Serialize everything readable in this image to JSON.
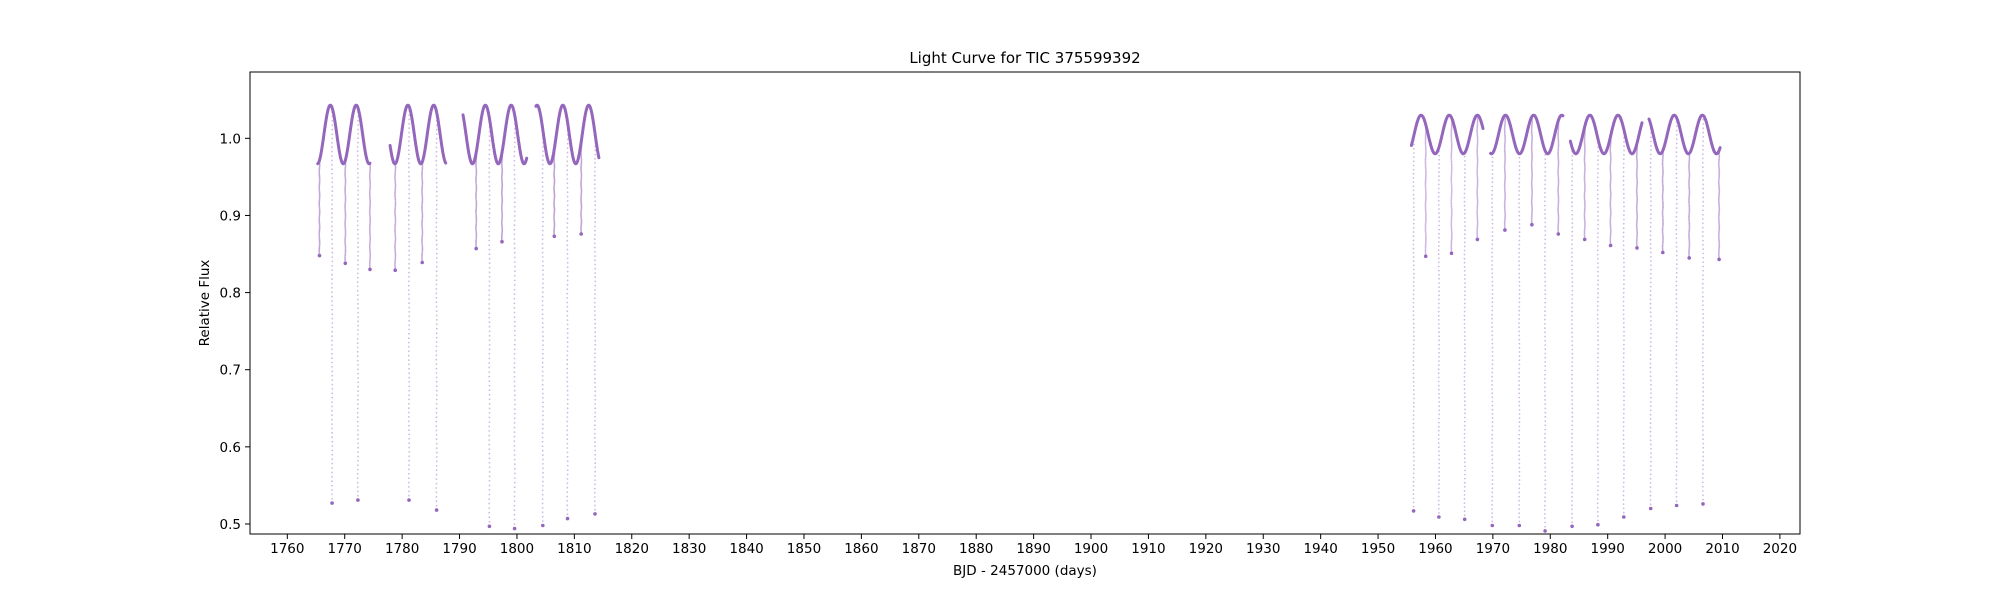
{
  "chart_data": {
    "type": "scatter",
    "title": "Light Curve for TIC 375599392",
    "xlabel": "BJD - 2457000 (days)",
    "ylabel": "Relative Flux",
    "xlim": [
      1753.5,
      2023.5
    ],
    "ylim": [
      0.487,
      1.086
    ],
    "xticks": [
      1760,
      1770,
      1780,
      1790,
      1800,
      1810,
      1820,
      1830,
      1840,
      1850,
      1860,
      1870,
      1880,
      1890,
      1900,
      1910,
      1920,
      1930,
      1940,
      1950,
      1960,
      1970,
      1980,
      1990,
      2000,
      2010,
      2020
    ],
    "yticks": [
      0.5,
      0.6,
      0.7,
      0.8,
      0.9,
      1.0
    ],
    "ytick_labels": [
      "0.5",
      "0.6",
      "0.7",
      "0.8",
      "0.9",
      "1.0"
    ],
    "grid": false,
    "series_color": "#9467bd",
    "segments": [
      {
        "x_start": 1765.3,
        "x_end": 1774.4
      },
      {
        "x_start": 1777.9,
        "x_end": 1787.6
      },
      {
        "x_start": 1790.6,
        "x_end": 1801.7
      },
      {
        "x_start": 1803.3,
        "x_end": 1814.3
      },
      {
        "x_start": 1955.8,
        "x_end": 1968.3
      },
      {
        "x_start": 1969.6,
        "x_end": 1982.2
      },
      {
        "x_start": 1983.5,
        "x_end": 1996.0
      },
      {
        "x_start": 1997.2,
        "x_end": 2009.6
      }
    ],
    "variability": [
      {
        "x_start": 1765.3,
        "x_end": 1814.3,
        "mean": 1.005,
        "amplitude": 0.038,
        "period": 4.5,
        "phase": 1767.5
      },
      {
        "x_start": 1955.8,
        "x_end": 2009.6,
        "mean": 1.005,
        "amplitude": 0.025,
        "period": 4.9,
        "phase": 1957.5
      }
    ],
    "dips": [
      {
        "x": 1765.6,
        "min": 0.848
      },
      {
        "x": 1767.8,
        "min": 0.527
      },
      {
        "x": 1770.1,
        "min": 0.838
      },
      {
        "x": 1772.3,
        "min": 0.531
      },
      {
        "x": 1774.4,
        "min": 0.83
      },
      {
        "x": 1778.8,
        "min": 0.829
      },
      {
        "x": 1781.2,
        "min": 0.531
      },
      {
        "x": 1783.5,
        "min": 0.839
      },
      {
        "x": 1786.0,
        "min": 0.518
      },
      {
        "x": 1792.9,
        "min": 0.857
      },
      {
        "x": 1795.2,
        "min": 0.497
      },
      {
        "x": 1797.4,
        "min": 0.866
      },
      {
        "x": 1799.6,
        "min": 0.494
      },
      {
        "x": 1804.5,
        "min": 0.498
      },
      {
        "x": 1806.5,
        "min": 0.873
      },
      {
        "x": 1808.8,
        "min": 0.507
      },
      {
        "x": 1811.2,
        "min": 0.876
      },
      {
        "x": 1813.6,
        "min": 0.513
      },
      {
        "x": 1956.2,
        "min": 0.517
      },
      {
        "x": 1958.3,
        "min": 0.847
      },
      {
        "x": 1960.6,
        "min": 0.509
      },
      {
        "x": 1962.8,
        "min": 0.851
      },
      {
        "x": 1965.1,
        "min": 0.506
      },
      {
        "x": 1967.3,
        "min": 0.869
      },
      {
        "x": 1969.9,
        "min": 0.498
      },
      {
        "x": 1972.1,
        "min": 0.881
      },
      {
        "x": 1974.6,
        "min": 0.498
      },
      {
        "x": 1976.8,
        "min": 0.888
      },
      {
        "x": 1979.1,
        "min": 0.491
      },
      {
        "x": 1981.4,
        "min": 0.876
      },
      {
        "x": 1983.8,
        "min": 0.497
      },
      {
        "x": 1986.0,
        "min": 0.869
      },
      {
        "x": 1988.3,
        "min": 0.499
      },
      {
        "x": 1990.5,
        "min": 0.861
      },
      {
        "x": 1992.8,
        "min": 0.509
      },
      {
        "x": 1995.1,
        "min": 0.858
      },
      {
        "x": 1997.5,
        "min": 0.52
      },
      {
        "x": 1999.6,
        "min": 0.852
      },
      {
        "x": 2002.0,
        "min": 0.524
      },
      {
        "x": 2004.2,
        "min": 0.845
      },
      {
        "x": 2006.6,
        "min": 0.526
      },
      {
        "x": 2009.4,
        "min": 0.843
      }
    ]
  }
}
